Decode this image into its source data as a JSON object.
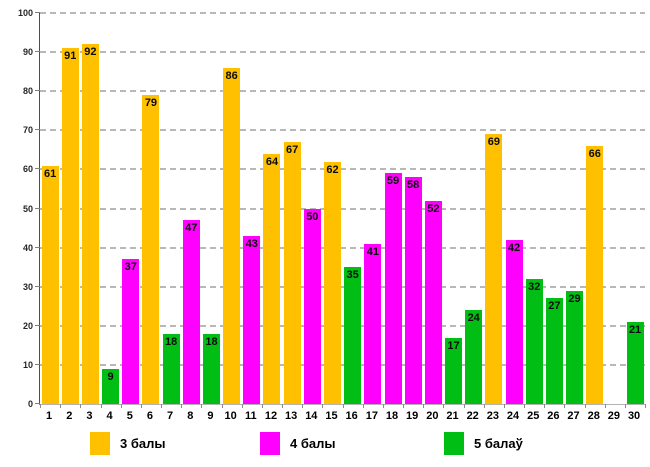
{
  "chart_data": {
    "type": "bar",
    "title": "",
    "xlabel": "",
    "ylabel": "",
    "ylim": [
      0,
      100
    ],
    "yticks": [
      0,
      10,
      20,
      30,
      40,
      50,
      60,
      70,
      80,
      90,
      100
    ],
    "grid": "dashed-horizontal",
    "legend_position": "bottom",
    "categories": [
      "1",
      "2",
      "3",
      "4",
      "5",
      "6",
      "7",
      "8",
      "9",
      "10",
      "11",
      "12",
      "13",
      "14",
      "15",
      "16",
      "17",
      "18",
      "19",
      "20",
      "21",
      "22",
      "23",
      "24",
      "25",
      "26",
      "27",
      "28",
      "29",
      "30"
    ],
    "values": [
      61,
      91,
      92,
      9,
      37,
      79,
      18,
      47,
      18,
      86,
      43,
      64,
      67,
      50,
      62,
      35,
      41,
      59,
      58,
      52,
      17,
      24,
      69,
      42,
      32,
      27,
      29,
      66,
      null,
      21
    ],
    "series_index_per_bar": [
      0,
      0,
      0,
      2,
      1,
      0,
      2,
      1,
      2,
      0,
      1,
      0,
      0,
      1,
      0,
      2,
      1,
      1,
      1,
      1,
      2,
      2,
      0,
      1,
      2,
      2,
      2,
      0,
      null,
      2
    ],
    "legend": [
      {
        "label": "3 балы",
        "color": "#FFC000"
      },
      {
        "label": "4 балы",
        "color": "#FF00FF"
      },
      {
        "label": "5 балаў",
        "color": "#00BE14"
      }
    ],
    "colors": {
      "axis": "#4d4d4d",
      "gridline": "#b8b8b8",
      "value_label": "#0d0d0d"
    }
  }
}
